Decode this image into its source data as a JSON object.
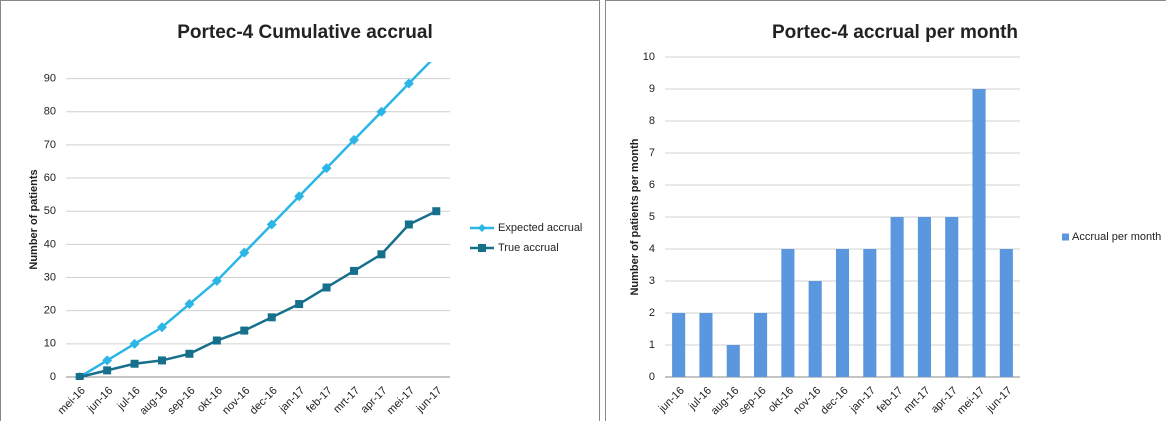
{
  "chart_data": [
    {
      "type": "line",
      "title": "Portec-4 Cumulative accrual",
      "y_label": "Number of patients",
      "categories": [
        "mei-16",
        "jun-16",
        "jul-16",
        "aug-16",
        "sep-16",
        "okt-16",
        "nov-16",
        "dec-16",
        "jan-17",
        "feb-17",
        "mrt-17",
        "apr-17",
        "mei-17",
        "jun-17"
      ],
      "series": [
        {
          "name": "Expected accrual",
          "color": "#2bb6e6",
          "marker": "diamond",
          "values": [
            0,
            5,
            10,
            15,
            22,
            29,
            37.5,
            46,
            54.5,
            63,
            71.5,
            80,
            88.5,
            97
          ]
        },
        {
          "name": "True accrual",
          "color": "#16708c",
          "marker": "square",
          "values": [
            0,
            2,
            4,
            5,
            7,
            11,
            14,
            18,
            22,
            27,
            32,
            37,
            46,
            50
          ]
        }
      ],
      "ylim": [
        0,
        95
      ],
      "yticks": [
        0,
        10,
        20,
        30,
        40,
        50,
        60,
        70,
        80,
        90
      ],
      "grid": true,
      "legend": "right"
    },
    {
      "type": "bar",
      "title": "Portec-4 accrual per month",
      "y_label": "Number of patients per month",
      "categories": [
        "jun-16",
        "jul-16",
        "aug-16",
        "sep-16",
        "okt-16",
        "nov-16",
        "dec-16",
        "jan-17",
        "feb-17",
        "mrt-17",
        "apr-17",
        "mei-17",
        "jun-17"
      ],
      "series": [
        {
          "name": "Accrual per month",
          "color": "#5a97de",
          "values": [
            2,
            2,
            1,
            2,
            4,
            3,
            4,
            4,
            5,
            5,
            5,
            9,
            4
          ]
        }
      ],
      "ylim": [
        0,
        10
      ],
      "yticks": [
        0,
        1,
        2,
        3,
        4,
        5,
        6,
        7,
        8,
        9,
        10
      ],
      "grid": true,
      "legend": "right"
    }
  ]
}
